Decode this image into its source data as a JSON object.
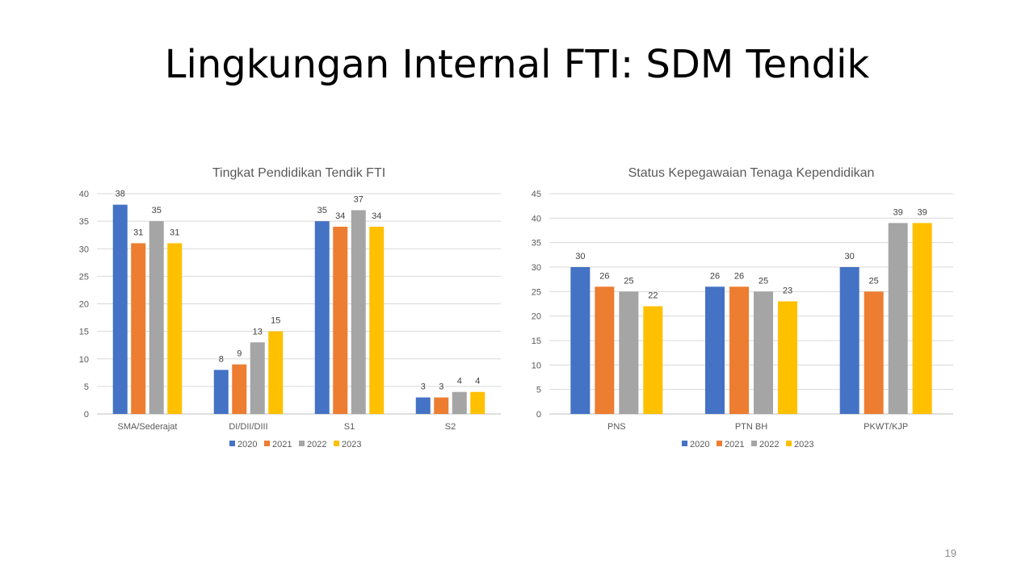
{
  "slide": {
    "title": "Lingkungan Internal FTI: SDM Tendik",
    "page_number": "19"
  },
  "chart_data": [
    {
      "type": "bar",
      "title": "Tingkat Pendidikan Tendik FTI",
      "categories": [
        "SMA/Sederajat",
        "DI/DII/DIII",
        "S1",
        "S2"
      ],
      "series": [
        {
          "name": "2020",
          "color": "#4472C4",
          "values": [
            38,
            8,
            35,
            3
          ]
        },
        {
          "name": "2021",
          "color": "#ED7D31",
          "values": [
            31,
            9,
            34,
            3
          ]
        },
        {
          "name": "2022",
          "color": "#A5A5A5",
          "values": [
            35,
            13,
            37,
            4
          ]
        },
        {
          "name": "2023",
          "color": "#FFC000",
          "values": [
            31,
            15,
            34,
            4
          ]
        }
      ],
      "ylim": [
        0,
        40
      ],
      "yticks": [
        0,
        5,
        10,
        15,
        20,
        25,
        30,
        35,
        40
      ],
      "grid": true,
      "legend": "bottom",
      "xlabel": "",
      "ylabel": ""
    },
    {
      "type": "bar",
      "title": "Status Kepegawaian Tenaga Kependidikan",
      "categories": [
        "PNS",
        "PTN BH",
        "PKWT/KJP"
      ],
      "series": [
        {
          "name": "2020",
          "color": "#4472C4",
          "values": [
            30,
            26,
            30
          ]
        },
        {
          "name": "2021",
          "color": "#ED7D31",
          "values": [
            26,
            26,
            25
          ]
        },
        {
          "name": "2022",
          "color": "#A5A5A5",
          "values": [
            25,
            25,
            39
          ]
        },
        {
          "name": "2023",
          "color": "#FFC000",
          "values": [
            22,
            23,
            39
          ]
        }
      ],
      "ylim": [
        0,
        45
      ],
      "yticks": [
        0,
        5,
        10,
        15,
        20,
        25,
        30,
        35,
        40,
        45
      ],
      "grid": true,
      "legend": "bottom",
      "xlabel": "",
      "ylabel": ""
    }
  ]
}
